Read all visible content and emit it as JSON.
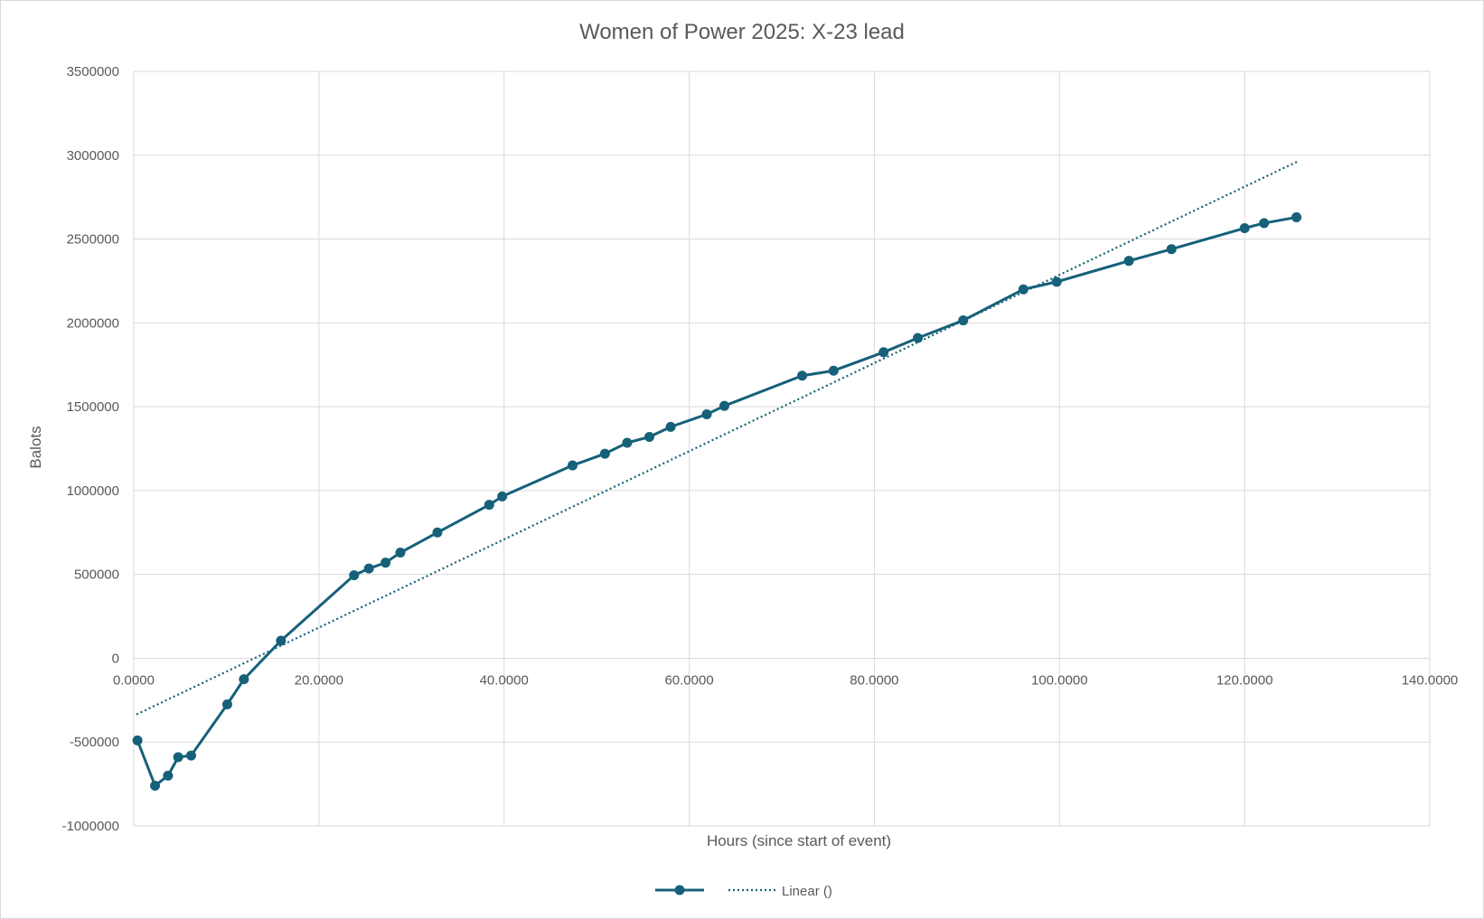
{
  "chart_data": {
    "type": "scatter",
    "title": "Women of Power 2025: X-23 lead",
    "xlabel": "Hours (since start of event)",
    "ylabel": "Balots",
    "xlim": [
      0,
      140
    ],
    "ylim": [
      -1000000,
      3500000
    ],
    "x_ticks": [
      "0.0000",
      "20.0000",
      "40.0000",
      "60.0000",
      "80.0000",
      "100.0000",
      "120.0000",
      "140.0000"
    ],
    "y_ticks": [
      "-1000000",
      "-500000",
      "0",
      "500000",
      "1000000",
      "1500000",
      "2000000",
      "2500000",
      "3000000",
      "3500000"
    ],
    "grid": true,
    "legend_position": "bottom",
    "series": [
      {
        "name": "",
        "style": "line-markers",
        "color": "#16607a",
        "x": [
          0.4,
          2.3,
          3.7,
          4.8,
          6.2,
          10.1,
          11.9,
          15.9,
          23.8,
          25.4,
          27.2,
          28.8,
          32.8,
          38.4,
          39.8,
          47.4,
          50.9,
          53.3,
          55.7,
          58.0,
          61.9,
          63.8,
          72.2,
          75.6,
          81.0,
          84.7,
          89.6,
          96.1,
          99.7,
          107.5,
          112.1,
          120.0,
          122.1,
          125.6
        ],
        "y": [
          -490000,
          -760000,
          -700000,
          -590000,
          -580000,
          -275000,
          -125000,
          105000,
          495000,
          535000,
          570000,
          630000,
          750000,
          915000,
          965000,
          1150000,
          1220000,
          1285000,
          1320000,
          1380000,
          1455000,
          1505000,
          1685000,
          1715000,
          1825000,
          1910000,
          2015000,
          2200000,
          2245000,
          2370000,
          2440000,
          2565000,
          2595000,
          2630000
        ]
      },
      {
        "name": "Linear ()",
        "style": "dotted-trendline",
        "color": "#16607a",
        "x": [
          0.3,
          125.8
        ],
        "y": [
          -335000,
          2965000
        ]
      }
    ]
  }
}
